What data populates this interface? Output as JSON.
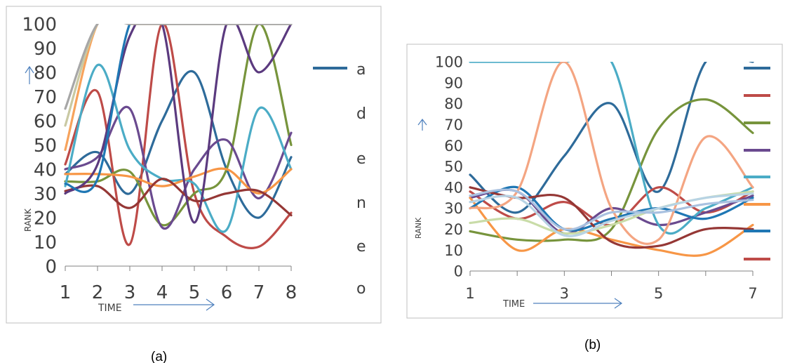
{
  "figure": {
    "caption_a": "(a)",
    "caption_b": "(b)"
  },
  "chart_data": [
    {
      "panel": "a",
      "type": "line",
      "caption": "(a)",
      "xlabel": "TIME",
      "ylabel": "RANK",
      "xlim": [
        1,
        8
      ],
      "ylim": [
        0,
        100
      ],
      "x_ticks": [
        1,
        2,
        3,
        4,
        5,
        6,
        7,
        8
      ],
      "y_ticks": [
        0,
        10,
        20,
        30,
        40,
        50,
        60,
        70,
        80,
        90,
        100
      ],
      "legend_position": "right",
      "legend_labels": [
        "a",
        "d",
        "e",
        "n",
        "e",
        "o"
      ],
      "grid": false,
      "series": [
        {
          "color": "#2e6b9a",
          "x": [
            1,
            2,
            3,
            4,
            5,
            6,
            7,
            8
          ],
          "y": [
            38,
            47,
            30,
            60,
            80,
            40,
            20,
            45
          ]
        },
        {
          "color": "#be4b48",
          "x": [
            1,
            2,
            3,
            4,
            5,
            6,
            7,
            8
          ],
          "y": [
            42,
            72,
            9,
            100,
            30,
            12,
            8,
            22
          ]
        },
        {
          "color": "#77943c",
          "x": [
            1,
            2,
            3,
            4,
            5,
            6,
            7,
            8
          ],
          "y": [
            35,
            35,
            39,
            17,
            30,
            40,
            100,
            50
          ]
        },
        {
          "color": "#6a4a8f",
          "x": [
            1,
            2,
            3,
            4,
            5,
            6,
            7,
            8
          ],
          "y": [
            40,
            45,
            65,
            16,
            40,
            52,
            28,
            55
          ]
        },
        {
          "color": "#4bacc6",
          "x": [
            1,
            2,
            3,
            4,
            5,
            6,
            7,
            8
          ],
          "y": [
            33,
            83,
            48,
            36,
            34,
            15,
            65,
            40
          ]
        },
        {
          "color": "#f79646",
          "x": [
            1,
            2,
            3,
            4,
            5,
            6,
            7,
            8
          ],
          "y": [
            38,
            38,
            37,
            33,
            37,
            40,
            30,
            40
          ]
        },
        {
          "color": "#953735",
          "x": [
            1,
            2,
            3,
            4,
            5,
            6,
            7,
            8
          ],
          "y": [
            31,
            33,
            24,
            36,
            27,
            30,
            31,
            21
          ]
        },
        {
          "color": "#5b3a7f",
          "x": [
            1,
            2,
            3,
            4,
            5,
            6,
            7,
            8
          ],
          "y": [
            30,
            42,
            95,
            100,
            18,
            100,
            80,
            100
          ]
        },
        {
          "color": "#1f77b4",
          "x": [
            1,
            2,
            3,
            4,
            5,
            6,
            7,
            8
          ],
          "y": [
            34,
            36,
            100,
            100,
            100,
            100,
            100,
            100
          ]
        },
        {
          "color": "#f7a35c",
          "x": [
            1,
            2,
            3,
            4,
            5,
            6,
            7,
            8
          ],
          "y": [
            48,
            100,
            100,
            100,
            100,
            100,
            100,
            100
          ]
        },
        {
          "color": "#c9c9a3",
          "x": [
            1,
            2,
            3,
            4,
            5,
            6,
            7,
            8
          ],
          "y": [
            58,
            100,
            100,
            100,
            100,
            100,
            100,
            100
          ]
        },
        {
          "color": "#a7a7a7",
          "x": [
            1,
            2,
            3,
            4,
            5,
            6,
            7,
            8
          ],
          "y": [
            65,
            100,
            100,
            100,
            100,
            100,
            100,
            100
          ]
        }
      ]
    },
    {
      "panel": "b",
      "type": "line",
      "caption": "(b)",
      "xlabel": "TIME",
      "ylabel": "RANK",
      "xlim": [
        1,
        7
      ],
      "ylim": [
        0,
        100
      ],
      "x_ticks": [
        1,
        3,
        5,
        7
      ],
      "y_ticks": [
        0,
        10,
        20,
        30,
        40,
        50,
        60,
        70,
        80,
        90,
        100
      ],
      "legend_position": "right",
      "grid": false,
      "series": [
        {
          "color": "#2e6b9a",
          "x": [
            1,
            2,
            3,
            4,
            5,
            6,
            7
          ],
          "y": [
            46,
            28,
            55,
            80,
            38,
            100,
            100
          ]
        },
        {
          "color": "#be4b48",
          "x": [
            1,
            2,
            3,
            4,
            5,
            6,
            7
          ],
          "y": [
            38,
            25,
            33,
            22,
            40,
            28,
            38
          ]
        },
        {
          "color": "#77943c",
          "x": [
            1,
            2,
            3,
            4,
            5,
            6,
            7
          ],
          "y": [
            19,
            15,
            15,
            20,
            68,
            82,
            66
          ]
        },
        {
          "color": "#6a4a8f",
          "x": [
            1,
            2,
            3,
            4,
            5,
            6,
            7
          ],
          "y": [
            35,
            38,
            18,
            30,
            22,
            28,
            36
          ]
        },
        {
          "color": "#4bacc6",
          "x": [
            1,
            2,
            3,
            4,
            5,
            6,
            7
          ],
          "y": [
            100,
            100,
            100,
            100,
            22,
            30,
            40
          ]
        },
        {
          "color": "#f79646",
          "x": [
            1,
            2,
            3,
            4,
            5,
            6,
            7
          ],
          "y": [
            35,
            10,
            20,
            15,
            10,
            8,
            22
          ]
        },
        {
          "color": "#1f77b4",
          "x": [
            1,
            2,
            3,
            4,
            5,
            6,
            7
          ],
          "y": [
            30,
            40,
            20,
            25,
            30,
            25,
            35
          ]
        },
        {
          "color": "#953735",
          "x": [
            1,
            2,
            3,
            4,
            5,
            6,
            7
          ],
          "y": [
            40,
            35,
            35,
            14,
            12,
            20,
            20
          ]
        },
        {
          "color": "#f4a582",
          "x": [
            1,
            2,
            3,
            4,
            5,
            6,
            7
          ],
          "y": [
            30,
            38,
            100,
            30,
            15,
            64,
            40
          ]
        },
        {
          "color": "#c9dca8",
          "x": [
            1,
            2,
            3,
            4,
            5,
            6,
            7
          ],
          "y": [
            23,
            25,
            18,
            22,
            30,
            35,
            38
          ]
        },
        {
          "color": "#b7d3e4",
          "x": [
            1,
            2,
            3,
            4,
            5,
            6,
            7
          ],
          "y": [
            33,
            35,
            17,
            24,
            30,
            35,
            37
          ]
        },
        {
          "color": "#a9c1e0",
          "x": [
            1,
            2,
            3,
            4,
            5,
            6,
            7
          ],
          "y": [
            36,
            38,
            20,
            28,
            28,
            32,
            34
          ]
        }
      ],
      "legend_colors": [
        "#2e6b9a",
        "#be4b48",
        "#77943c",
        "#6a4a8f",
        "#4bacc6",
        "#f79646",
        "#1f77b4",
        "#be4b48"
      ]
    }
  ]
}
